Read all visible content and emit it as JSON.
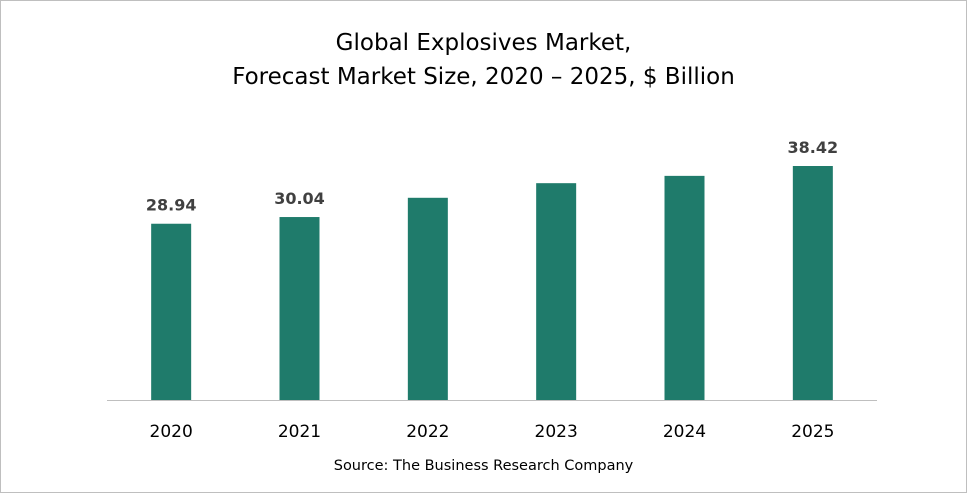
{
  "chart_data": {
    "type": "bar",
    "title": "Global Explosives Market,",
    "subtitle": "Forecast Market Size, 2020 – 2025, $ Billion",
    "categories": [
      "2020",
      "2021",
      "2022",
      "2023",
      "2024",
      "2025"
    ],
    "values": [
      28.94,
      30.04,
      33.2,
      35.6,
      36.8,
      38.42
    ],
    "data_labels": [
      "28.94",
      "30.04",
      "",
      "",
      "",
      "38.42"
    ],
    "xlabel": "",
    "ylabel": "",
    "ylim": [
      0,
      38.42
    ],
    "grid": false,
    "legend": "none",
    "bar_color": "#1f7b6b",
    "source": "Source: The Business Research Company"
  }
}
